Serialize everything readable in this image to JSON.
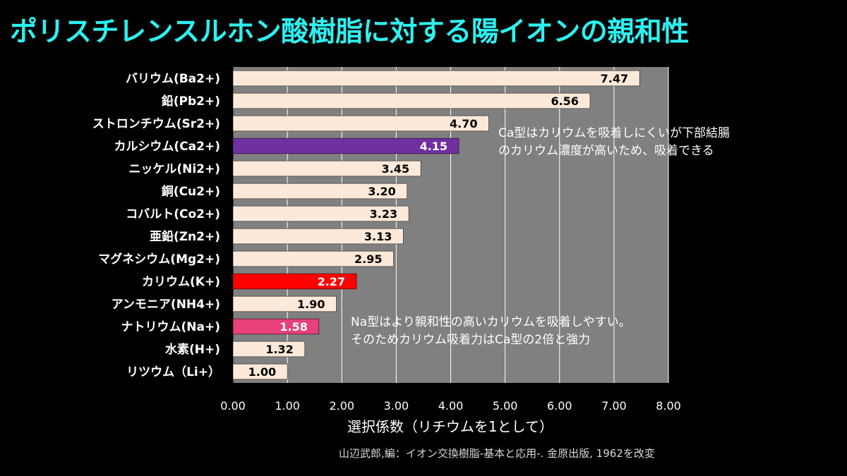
{
  "title": "ポリスチレンスルホン酸樹脂に対する陽イオンの親和性",
  "source": "山辺武郎,編：イオン交換樹脂-基本と応用-. 金原出版, 1962を改変",
  "chart_data": {
    "type": "bar",
    "orientation": "horizontal",
    "title": "ポリスチレンスルホン酸樹脂に対する陽イオンの親和性",
    "xlabel": "選択係数（リチウムを1として）",
    "ylabel": "",
    "xlim": [
      0,
      8
    ],
    "xticks": [
      "0.00",
      "1.00",
      "2.00",
      "3.00",
      "4.00",
      "5.00",
      "6.00",
      "7.00",
      "8.00"
    ],
    "grid": true,
    "categories": [
      "バリウム(Ba2+)",
      "鉛(Pb2+)",
      "ストロンチウム(Sr2+)",
      "カルシウム(Ca2+)",
      "ニッケル(Ni2+)",
      "銅(Cu2+)",
      "コバルト(Co2+)",
      "亜鉛(Zn2+)",
      "マグネシウム(Mg2+)",
      "カリウム(K+)",
      "アンモニア(NH4+)",
      "ナトリウム(Na+)",
      "水素(H+)",
      "リツウム（Li+）"
    ],
    "values": [
      7.47,
      6.56,
      4.7,
      4.15,
      3.45,
      3.2,
      3.23,
      3.13,
      2.95,
      2.27,
      1.9,
      1.58,
      1.32,
      1.0
    ],
    "value_labels": [
      "7.47",
      "6.56",
      "4.70",
      "4.15",
      "3.45",
      "3.20",
      "3.23",
      "3.13",
      "2.95",
      "2.27",
      "1.90",
      "1.58",
      "1.32",
      "1.00"
    ],
    "annotations": [
      {
        "lines": [
          "Ca型はカリウムを吸着しにくいが下部結腸",
          "のカリウム濃度が高いため、吸着できる"
        ]
      },
      {
        "lines": [
          "Na型はより親和性の高いカリウムを吸着しやすい。",
          "そのためカリウム吸着力はCa型の2倍と強力"
        ]
      }
    ],
    "colors": {
      "bar_default": "#fde9d9",
      "bar_highlight": {
        "カルシウム(Ca2+)": "#7030a0",
        "カリウム(K+)": "#ff0000",
        "ナトリウム(Na+)": "#e8407a"
      },
      "plot_background": "#808080",
      "gridline": "#ffffff",
      "label_default": "#000000",
      "label_highlight": "#ffffff"
    }
  }
}
